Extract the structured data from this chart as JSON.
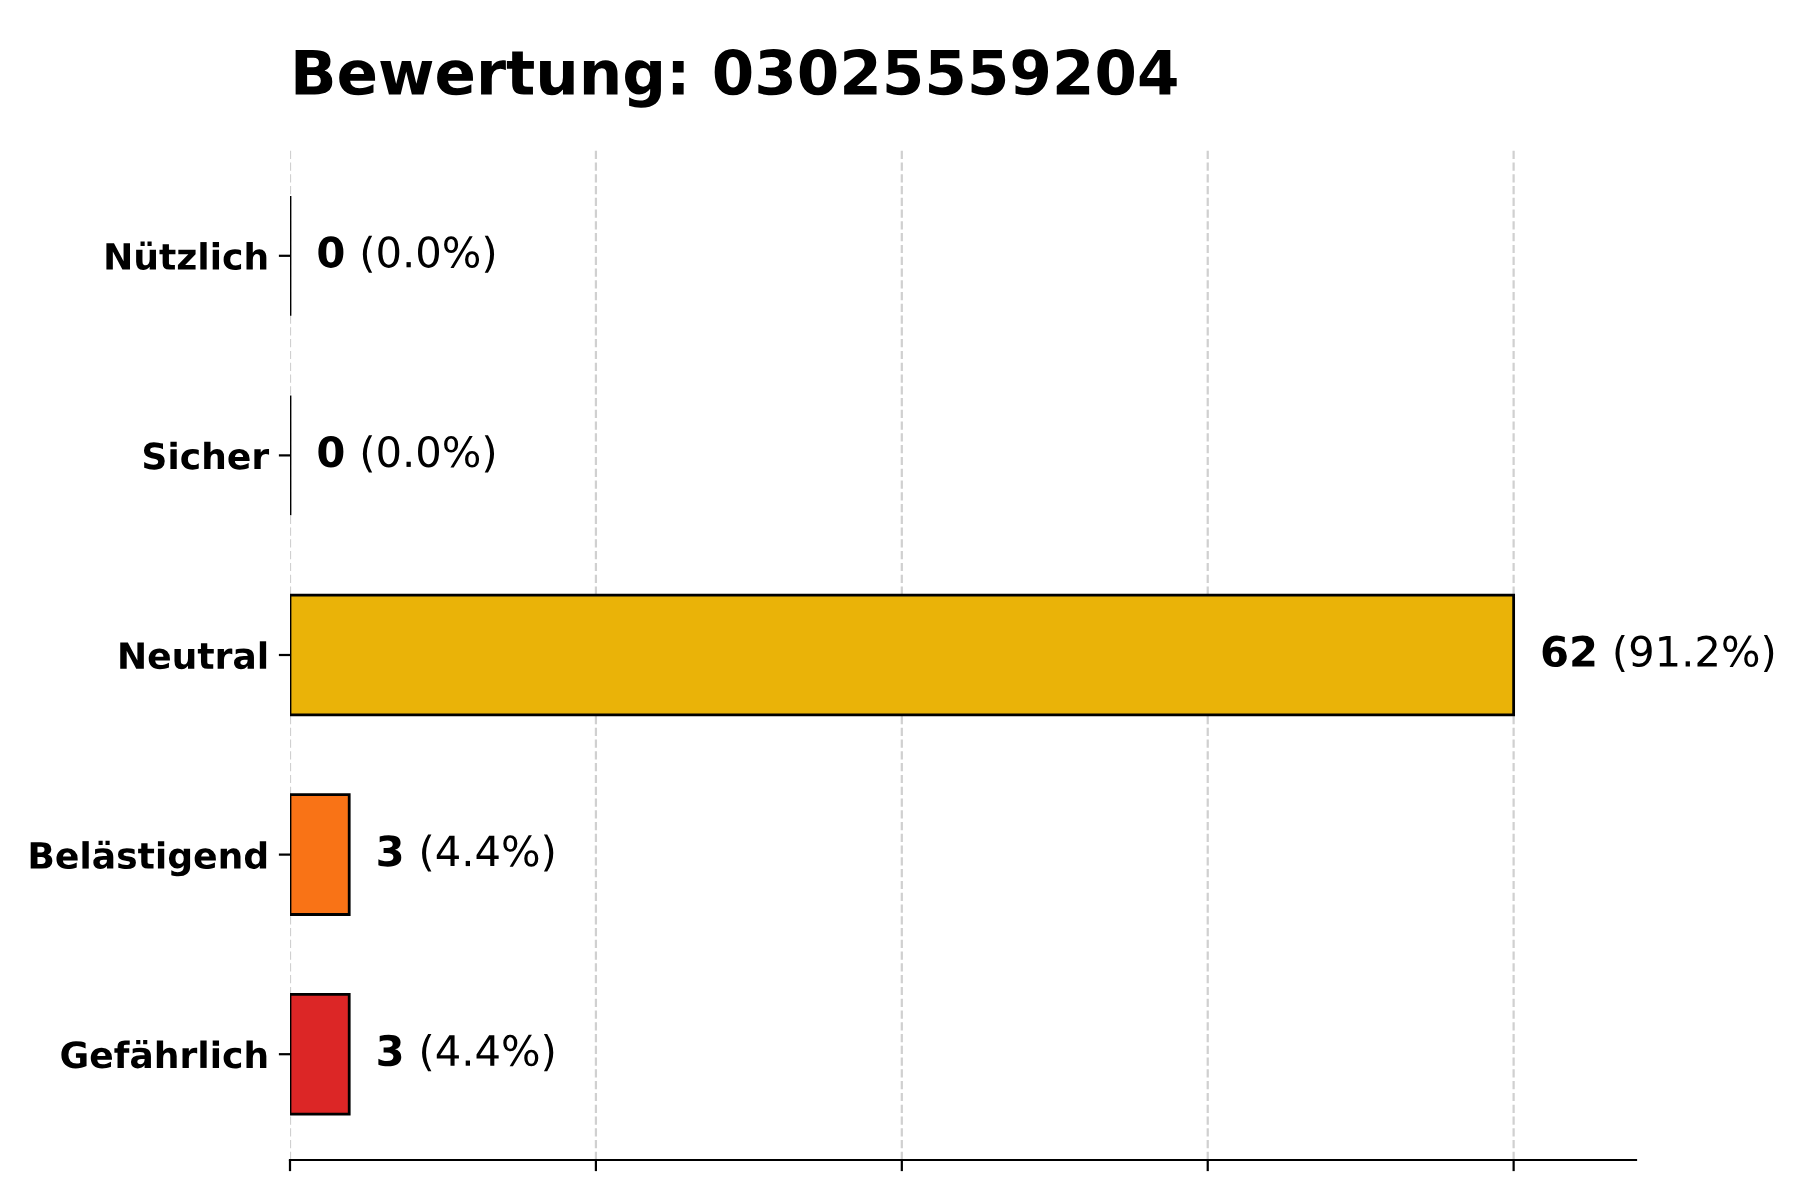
{
  "chart_data": {
    "type": "bar",
    "orientation": "horizontal",
    "title": "Bewertung: 03025559204",
    "categories": [
      "Nützlich",
      "Sicher",
      "Neutral",
      "Belästigend",
      "Gefährlich"
    ],
    "values": [
      0,
      0,
      62,
      3,
      3
    ],
    "colors": [
      "#000000",
      "#000000",
      "#eab308",
      "#f97316",
      "#dc2626"
    ],
    "value_labels": [
      "0 (0.0%)",
      "0 (0.0%)",
      "62 (91.2%)",
      "3 (4.4%)",
      "3 (4.4%)"
    ],
    "grid": "x",
    "tick_labels": "y"
  }
}
